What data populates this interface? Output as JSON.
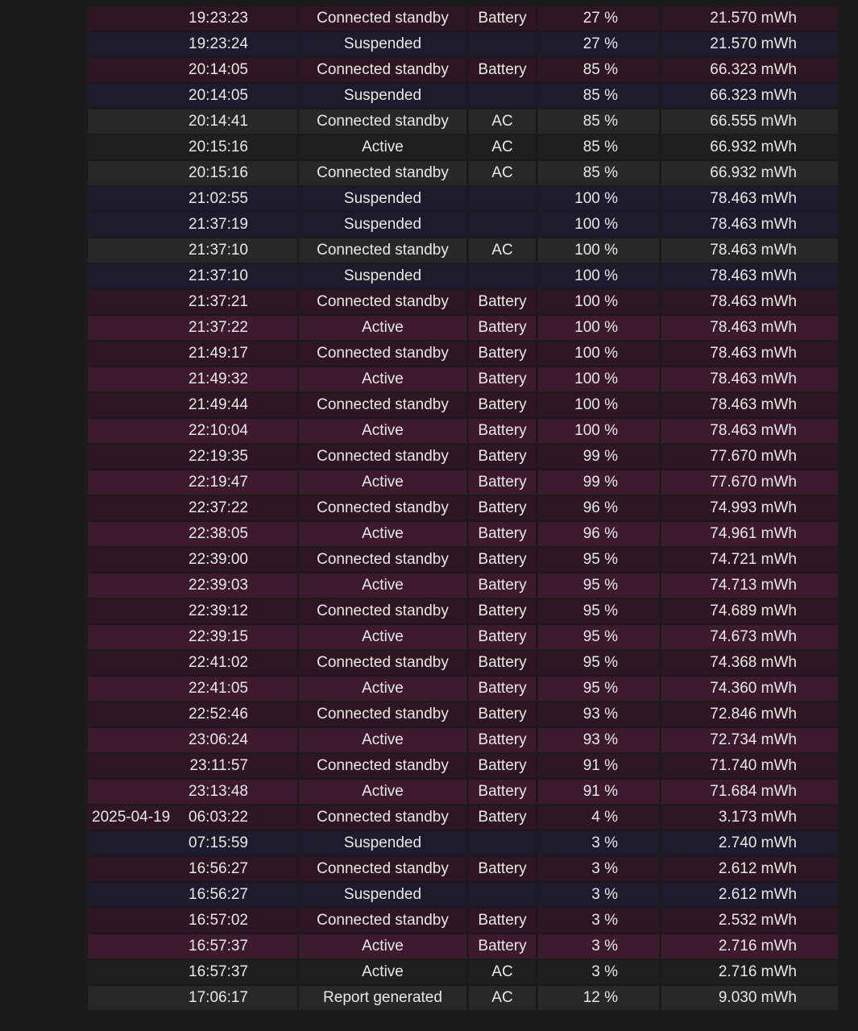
{
  "table": {
    "rows": [
      [
        "19:23:23",
        null,
        "Connected standby",
        "Battery",
        "27 %",
        "21.570 mWh"
      ],
      [
        "19:23:24",
        null,
        "Suspended",
        null,
        "27 %",
        "21.570 mWh"
      ],
      [
        "20:14:05",
        null,
        "Connected standby",
        "Battery",
        "85 %",
        "66.323 mWh"
      ],
      [
        "20:14:05",
        null,
        "Suspended",
        null,
        "85 %",
        "66.323 mWh"
      ],
      [
        "20:14:41",
        null,
        "Connected standby",
        "AC",
        "85 %",
        "66.555 mWh"
      ],
      [
        "20:15:16",
        null,
        "Active",
        "AC",
        "85 %",
        "66.932 mWh"
      ],
      [
        "20:15:16",
        null,
        "Connected standby",
        "AC",
        "85 %",
        "66.932 mWh"
      ],
      [
        "21:02:55",
        null,
        "Suspended",
        null,
        "100 %",
        "78.463 mWh"
      ],
      [
        "21:37:19",
        null,
        "Suspended",
        null,
        "100 %",
        "78.463 mWh"
      ],
      [
        "21:37:10",
        null,
        "Connected standby",
        "AC",
        "100 %",
        "78.463 mWh"
      ],
      [
        "21:37:10",
        null,
        "Suspended",
        null,
        "100 %",
        "78.463 mWh"
      ],
      [
        "21:37:21",
        null,
        "Connected standby",
        "Battery",
        "100 %",
        "78.463 mWh"
      ],
      [
        "21:37:22",
        null,
        "Active",
        "Battery",
        "100 %",
        "78.463 mWh"
      ],
      [
        "21:49:17",
        null,
        "Connected standby",
        "Battery",
        "100 %",
        "78.463 mWh"
      ],
      [
        "21:49:32",
        null,
        "Active",
        "Battery",
        "100 %",
        "78.463 mWh"
      ],
      [
        "21:49:44",
        null,
        "Connected standby",
        "Battery",
        "100 %",
        "78.463 mWh"
      ],
      [
        "22:10:04",
        null,
        "Active",
        "Battery",
        "100 %",
        "78.463 mWh"
      ],
      [
        "22:19:35",
        null,
        "Connected standby",
        "Battery",
        "99 %",
        "77.670 mWh"
      ],
      [
        "22:19:47",
        null,
        "Active",
        "Battery",
        "99 %",
        "77.670 mWh"
      ],
      [
        "22:37:22",
        null,
        "Connected standby",
        "Battery",
        "96 %",
        "74.993 mWh"
      ],
      [
        "22:38:05",
        null,
        "Active",
        "Battery",
        "96 %",
        "74.961 mWh"
      ],
      [
        "22:39:00",
        null,
        "Connected standby",
        "Battery",
        "95 %",
        "74.721 mWh"
      ],
      [
        "22:39:03",
        null,
        "Active",
        "Battery",
        "95 %",
        "74.713 mWh"
      ],
      [
        "22:39:12",
        null,
        "Connected standby",
        "Battery",
        "95 %",
        "74.689 mWh"
      ],
      [
        "22:39:15",
        null,
        "Active",
        "Battery",
        "95 %",
        "74.673 mWh"
      ],
      [
        "22:41:02",
        null,
        "Connected standby",
        "Battery",
        "95 %",
        "74.368 mWh"
      ],
      [
        "22:41:05",
        null,
        "Active",
        "Battery",
        "95 %",
        "74.360 mWh"
      ],
      [
        "22:52:46",
        null,
        "Connected standby",
        "Battery",
        "93 %",
        "72.846 mWh"
      ],
      [
        "23:06:24",
        null,
        "Active",
        "Battery",
        "93 %",
        "72.734 mWh"
      ],
      [
        "23:11:57",
        null,
        "Connected standby",
        "Battery",
        "91 %",
        "71.740 mWh"
      ],
      [
        "23:13:48",
        null,
        "Active",
        "Battery",
        "91 %",
        "71.684 mWh"
      ],
      [
        "06:03:22",
        "2025-04-19",
        "Connected standby",
        "Battery",
        "4 %",
        "3.173 mWh"
      ],
      [
        "07:15:59",
        null,
        "Suspended",
        null,
        "3 %",
        "2.740 mWh"
      ],
      [
        "16:56:27",
        null,
        "Connected standby",
        "Battery",
        "3 %",
        "2.612 mWh"
      ],
      [
        "16:56:27",
        null,
        "Suspended",
        null,
        "3 %",
        "2.612 mWh"
      ],
      [
        "16:57:02",
        null,
        "Connected standby",
        "Battery",
        "3 %",
        "2.532 mWh"
      ],
      [
        "16:57:37",
        null,
        "Active",
        "Battery",
        "3 %",
        "2.716 mWh"
      ],
      [
        "16:57:37",
        null,
        "Active",
        "AC",
        "3 %",
        "2.716 mWh"
      ],
      [
        "17:06:17",
        null,
        "Report generated",
        "AC",
        "12 %",
        "9.030 mWh"
      ]
    ]
  }
}
